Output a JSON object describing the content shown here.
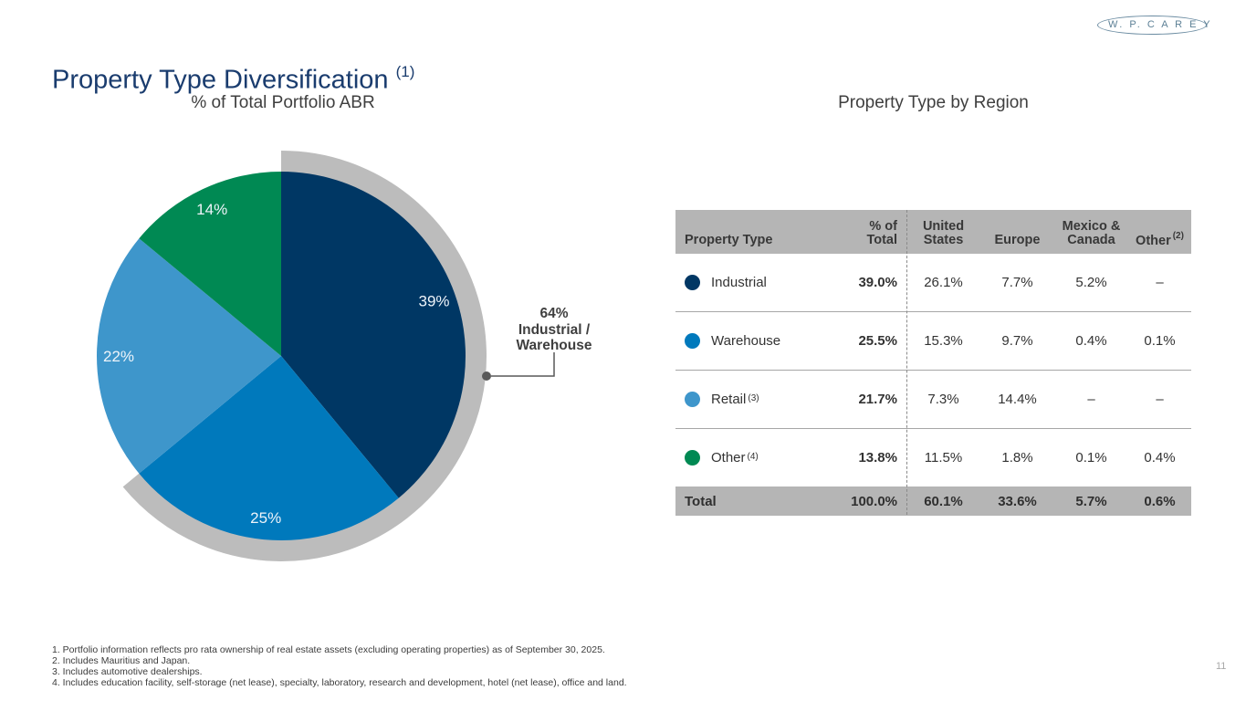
{
  "slide": {
    "logo": "W. P. C A R E Y",
    "title": "Property Type Diversification",
    "title_sup": "(1)",
    "page_number": "11"
  },
  "chart_data": [
    {
      "type": "pie",
      "title": "% of Total Portfolio ABR",
      "start": "12 o'clock",
      "direction": "clockwise",
      "label_color": "#eef4fa",
      "slices": [
        {
          "label": "Industrial",
          "value": 39,
          "display": "39%",
          "color": "#003764"
        },
        {
          "label": "Warehouse",
          "value": 25,
          "display": "25%",
          "color": "#0079bc"
        },
        {
          "label": "Retail",
          "value": 22,
          "display": "22%",
          "color": "#3e96cb"
        },
        {
          "label": "Other",
          "value": 14,
          "display": "14%",
          "color": "#008953"
        }
      ],
      "highlight_arc": {
        "percent": 64,
        "color": "#bcbcbc",
        "label_lines": [
          "64%",
          "Industrial /",
          "Warehouse"
        ]
      }
    },
    {
      "type": "table",
      "title": "Property Type by Region",
      "columns": [
        "Property Type",
        "% of\nTotal",
        "United\nStates",
        "Europe",
        "Mexico &\nCanada",
        "Other"
      ],
      "other_col_sup": "(2)",
      "rows": [
        {
          "label": "Industrial",
          "sup": "",
          "color": "#003764",
          "pct_total": "39.0%",
          "us": "26.1%",
          "europe": "7.7%",
          "mexico_canada": "5.2%",
          "other": "–"
        },
        {
          "label": "Warehouse",
          "sup": "",
          "color": "#0079bc",
          "pct_total": "25.5%",
          "us": "15.3%",
          "europe": "9.7%",
          "mexico_canada": "0.4%",
          "other": "0.1%"
        },
        {
          "label": "Retail",
          "sup": "(3)",
          "color": "#3e96cb",
          "pct_total": "21.7%",
          "us": "7.3%",
          "europe": "14.4%",
          "mexico_canada": "–",
          "other": "–"
        },
        {
          "label": "Other",
          "sup": "(4)",
          "color": "#008953",
          "pct_total": "13.8%",
          "us": "11.5%",
          "europe": "1.8%",
          "mexico_canada": "0.1%",
          "other": "0.4%"
        }
      ],
      "total": {
        "label": "Total",
        "pct_total": "100.0%",
        "us": "60.1%",
        "europe": "33.6%",
        "mexico_canada": "5.7%",
        "other": "0.6%"
      }
    }
  ],
  "footnotes": [
    "1. Portfolio information reflects pro rata ownership of real estate assets (excluding operating properties) as of September 30, 2025.",
    "2. Includes Mauritius and Japan.",
    "3. Includes automotive dealerships.",
    "4. Includes education facility, self-storage (net lease), specialty, laboratory, research and development, hotel (net lease), office and land."
  ]
}
